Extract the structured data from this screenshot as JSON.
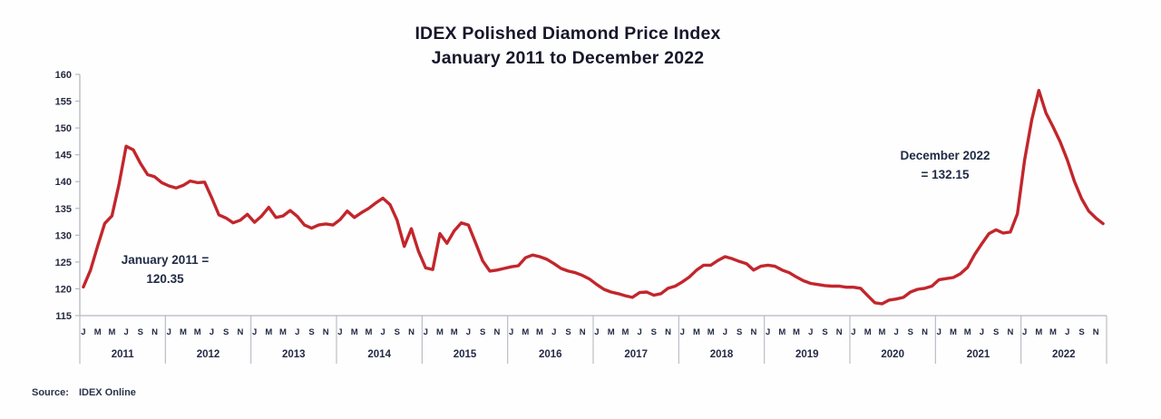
{
  "title": {
    "line1": "IDEX Polished Diamond Price Index",
    "line2": "January 2011 to December 2022"
  },
  "source": {
    "label": "Source:",
    "value": "IDEX Online"
  },
  "chart_data": {
    "type": "line",
    "title": "IDEX Polished Diamond Price Index",
    "subtitle": "January 2011 to December 2022",
    "xlabel": "",
    "ylabel": "",
    "ylim": [
      115,
      160
    ],
    "yticks": [
      115,
      120,
      125,
      130,
      135,
      140,
      145,
      150,
      155,
      160
    ],
    "grid": false,
    "legend_position": "none",
    "line_color": "#c2262c",
    "axis_color": "#b4b8c2",
    "years": [
      "2011",
      "2012",
      "2013",
      "2014",
      "2015",
      "2016",
      "2017",
      "2018",
      "2019",
      "2020",
      "2021",
      "2022"
    ],
    "month_tick_letters": [
      "J",
      "M",
      "M",
      "J",
      "S",
      "N"
    ],
    "month_tick_positions": [
      0,
      2,
      4,
      6,
      8,
      10
    ],
    "series": [
      {
        "name": "IDEX Polished Diamond Price Index (monthly)",
        "x_unit": "month, Jan 2011 - Dec 2022",
        "values": [
          120.35,
          123.5,
          128.0,
          132.2,
          133.6,
          139.5,
          146.6,
          145.9,
          143.4,
          141.3,
          140.9,
          139.8,
          139.2,
          138.8,
          139.3,
          140.1,
          139.8,
          139.9,
          137.0,
          133.8,
          133.2,
          132.3,
          132.8,
          133.9,
          132.4,
          133.6,
          135.2,
          133.3,
          133.6,
          134.6,
          133.5,
          131.9,
          131.3,
          131.9,
          132.1,
          131.9,
          132.9,
          134.5,
          133.3,
          134.2,
          135.0,
          136.0,
          136.9,
          135.7,
          132.8,
          127.9,
          131.2,
          127.0,
          123.9,
          123.6,
          130.3,
          128.5,
          130.8,
          132.3,
          131.9,
          128.6,
          125.2,
          123.3,
          123.5,
          123.8,
          124.1,
          124.3,
          125.8,
          126.3,
          126.0,
          125.5,
          124.7,
          123.8,
          123.3,
          123.0,
          122.5,
          121.8,
          120.8,
          119.9,
          119.4,
          119.1,
          118.7,
          118.4,
          119.3,
          119.4,
          118.8,
          119.1,
          120.1,
          120.5,
          121.3,
          122.2,
          123.5,
          124.4,
          124.4,
          125.3,
          126.0,
          125.6,
          125.1,
          124.7,
          123.5,
          124.2,
          124.4,
          124.2,
          123.5,
          123.0,
          122.2,
          121.5,
          121.0,
          120.8,
          120.6,
          120.5,
          120.5,
          120.3,
          120.3,
          120.1,
          118.7,
          117.4,
          117.2,
          117.9,
          118.1,
          118.4,
          119.4,
          119.9,
          120.1,
          120.5,
          121.7,
          121.9,
          122.1,
          122.8,
          124.0,
          126.4,
          128.4,
          130.3,
          131.0,
          130.4,
          130.6,
          134.0,
          144.0,
          151.5,
          157.0,
          152.8,
          150.2,
          147.4,
          144.0,
          140.0,
          136.8,
          134.5,
          133.2,
          132.15
        ]
      }
    ],
    "annotations": [
      {
        "line1": "January 2011 =",
        "line2": "120.35"
      },
      {
        "line1": "December 2022",
        "line2": "= 132.15"
      }
    ]
  }
}
